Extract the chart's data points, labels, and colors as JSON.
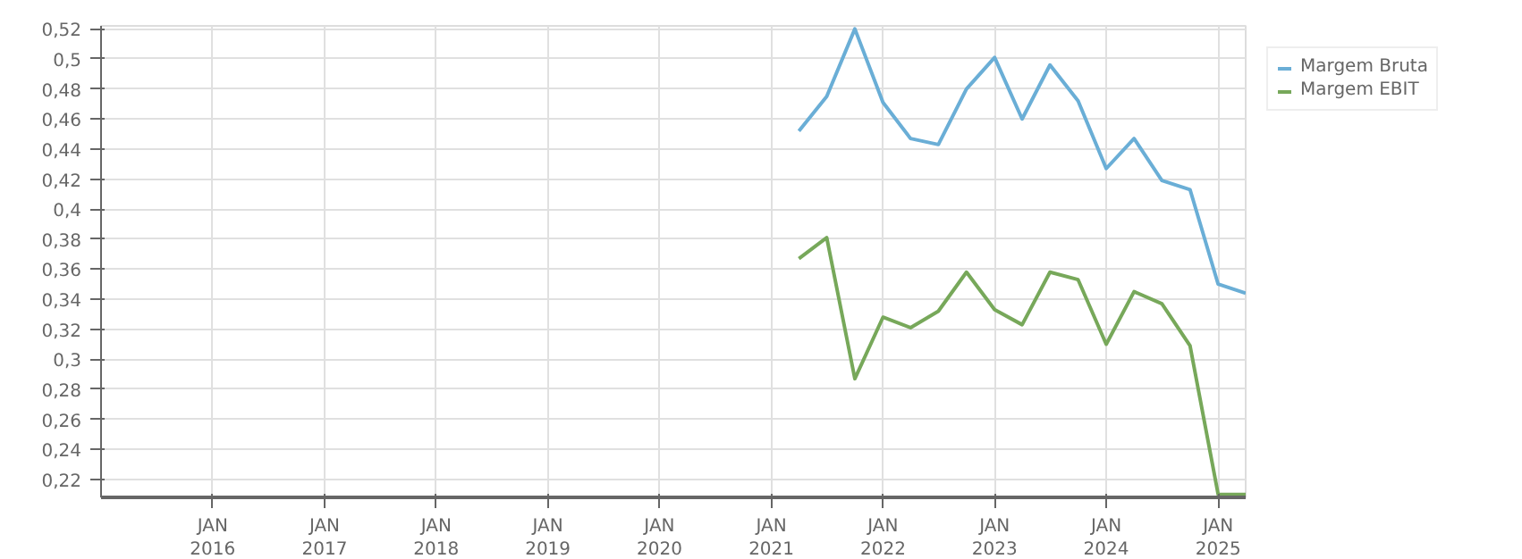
{
  "chart_data": {
    "type": "line",
    "x": [
      "2021-04",
      "2021-07",
      "2021-10",
      "2022-01",
      "2022-04",
      "2022-07",
      "2022-10",
      "2023-01",
      "2023-04",
      "2023-07",
      "2023-10",
      "2024-01",
      "2024-04",
      "2024-07",
      "2024-10",
      "2025-01",
      "2025-04"
    ],
    "series": [
      {
        "name": "Margem Bruta",
        "color": "#6aaed6",
        "values": [
          0.452,
          0.475,
          0.52,
          0.471,
          0.447,
          0.443,
          0.48,
          0.501,
          0.46,
          0.496,
          0.472,
          0.427,
          0.447,
          0.419,
          0.413,
          0.35,
          0.344
        ]
      },
      {
        "name": "Margem EBIT",
        "color": "#77a85a",
        "values": [
          0.367,
          0.381,
          0.287,
          0.328,
          0.321,
          0.332,
          0.358,
          0.333,
          0.323,
          0.358,
          0.353,
          0.31,
          0.345,
          0.337,
          0.309,
          0.21,
          0.21
        ]
      }
    ],
    "xlim": [
      "2015-01",
      "2025-04"
    ],
    "xticks": [
      {
        "value": "2016-01",
        "label": "JAN\n2016"
      },
      {
        "value": "2017-01",
        "label": "JAN\n2017"
      },
      {
        "value": "2018-01",
        "label": "JAN\n2018"
      },
      {
        "value": "2019-01",
        "label": "JAN\n2019"
      },
      {
        "value": "2020-01",
        "label": "JAN\n2020"
      },
      {
        "value": "2021-01",
        "label": "JAN\n2021"
      },
      {
        "value": "2022-01",
        "label": "JAN\n2022"
      },
      {
        "value": "2023-01",
        "label": "JAN\n2023"
      },
      {
        "value": "2024-01",
        "label": "JAN\n2024"
      },
      {
        "value": "2025-01",
        "label": "JAN\n2025"
      }
    ],
    "ylim": [
      0.208,
      0.522
    ],
    "yticks": [
      {
        "value": 0.22,
        "label": "0,22"
      },
      {
        "value": 0.24,
        "label": "0,24"
      },
      {
        "value": 0.26,
        "label": "0,26"
      },
      {
        "value": 0.28,
        "label": "0,28"
      },
      {
        "value": 0.3,
        "label": "0,3"
      },
      {
        "value": 0.32,
        "label": "0,32"
      },
      {
        "value": 0.34,
        "label": "0,34"
      },
      {
        "value": 0.36,
        "label": "0,36"
      },
      {
        "value": 0.38,
        "label": "0,38"
      },
      {
        "value": 0.4,
        "label": "0,4"
      },
      {
        "value": 0.42,
        "label": "0,42"
      },
      {
        "value": 0.44,
        "label": "0,44"
      },
      {
        "value": 0.46,
        "label": "0,46"
      },
      {
        "value": 0.48,
        "label": "0,48"
      },
      {
        "value": 0.5,
        "label": "0,5"
      },
      {
        "value": 0.52,
        "label": "0,52"
      }
    ],
    "grid": true,
    "legend": "top right",
    "marker": "none",
    "line_style": "solid"
  }
}
